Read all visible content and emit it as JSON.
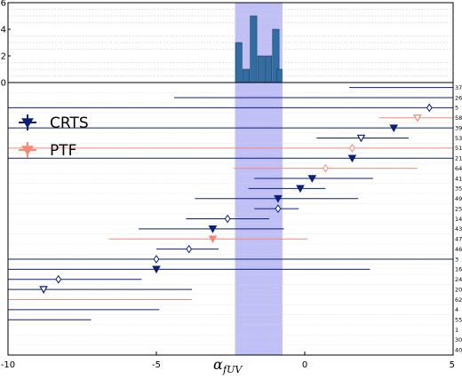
{
  "chart_data": {
    "type": "scatter",
    "xlabel": {
      "base": "α",
      "sub": "fUV"
    },
    "xlim": [
      -10,
      5
    ],
    "xticks": [
      "-10",
      "-5",
      "0",
      "5"
    ],
    "shaded_band": {
      "x": [
        -2.35,
        -0.75
      ],
      "color": "#b9b9f5"
    },
    "histogram": {
      "type": "bar",
      "ylim": [
        0,
        6
      ],
      "yticks": [
        "0",
        "2",
        "4",
        "6"
      ],
      "color": "#2f6da2",
      "bin_edges": [
        -2.35,
        -2.1,
        -1.85,
        -1.6,
        -1.35,
        -1.1,
        -0.85
      ],
      "counts": [
        3,
        1,
        5,
        2,
        2,
        4
      ],
      "extra_bins": [
        {
          "left": -0.95,
          "right": -0.75,
          "count": 1
        }
      ]
    },
    "legend": [
      {
        "name": "CRTS",
        "color": "#0a1f7a",
        "marker": "filled-triangle-down"
      },
      {
        "name": "PTF",
        "color": "#f28a78",
        "marker": "filled-triangle-down"
      }
    ],
    "rows": [
      {
        "label": "37",
        "survey": "CRTS",
        "lo": 1.5,
        "hi": 5,
        "val": null,
        "marker": "none"
      },
      {
        "label": "26",
        "survey": "CRTS",
        "lo": -4.4,
        "hi": 5,
        "val": null,
        "marker": "none"
      },
      {
        "label": "5",
        "survey": "CRTS",
        "lo": -10,
        "hi": 5,
        "val": 4.2,
        "marker": "open-diamond"
      },
      {
        "label": "58",
        "survey": "PTF",
        "lo": 2.5,
        "hi": 5,
        "val": 3.8,
        "marker": "open-triangle"
      },
      {
        "label": "39",
        "survey": "CRTS",
        "lo": -10,
        "hi": 5,
        "val": 3.0,
        "marker": "filled-triangle"
      },
      {
        "label": "53",
        "survey": "CRTS",
        "lo": 0.4,
        "hi": 3.5,
        "val": 1.9,
        "marker": "open-triangle"
      },
      {
        "label": "51",
        "survey": "PTF",
        "lo": -10,
        "hi": 5,
        "val": 1.6,
        "marker": "open-diamond"
      },
      {
        "label": "21",
        "survey": "CRTS",
        "lo": -10,
        "hi": 5,
        "val": 1.6,
        "marker": "filled-triangle"
      },
      {
        "label": "64",
        "survey": "PTF",
        "lo": -2.4,
        "hi": 3.8,
        "val": 0.7,
        "marker": "open-diamond"
      },
      {
        "label": "41",
        "survey": "CRTS",
        "lo": -1.7,
        "hi": 2.3,
        "val": 0.25,
        "marker": "filled-triangle"
      },
      {
        "label": "35",
        "survey": "CRTS",
        "lo": -1.9,
        "hi": 0.7,
        "val": -0.15,
        "marker": "filled-triangle"
      },
      {
        "label": "49",
        "survey": "CRTS",
        "lo": -3.7,
        "hi": 1.8,
        "val": -0.9,
        "marker": "filled-triangle"
      },
      {
        "label": "25",
        "survey": "CRTS",
        "lo": -1.7,
        "hi": -0.2,
        "val": -0.9,
        "marker": "open-diamond"
      },
      {
        "label": "14",
        "survey": "CRTS",
        "lo": -4.0,
        "hi": -1.2,
        "val": -2.6,
        "marker": "open-diamond"
      },
      {
        "label": "43",
        "survey": "CRTS",
        "lo": -5.6,
        "hi": -0.7,
        "val": -3.1,
        "marker": "filled-triangle"
      },
      {
        "label": "47",
        "survey": "PTF",
        "lo": -6.6,
        "hi": 0.1,
        "val": -3.1,
        "marker": "filled-triangle"
      },
      {
        "label": "46",
        "survey": "CRTS",
        "lo": -5.0,
        "hi": -2.9,
        "val": -3.9,
        "marker": "open-diamond"
      },
      {
        "label": "3",
        "survey": "CRTS",
        "lo": -10,
        "hi": 5,
        "val": -5.0,
        "marker": "open-diamond"
      },
      {
        "label": "16",
        "survey": "CRTS",
        "lo": -10,
        "hi": 2.2,
        "val": -5.0,
        "marker": "filled-triangle"
      },
      {
        "label": "24",
        "survey": "CRTS",
        "lo": -10,
        "hi": -5.5,
        "val": -8.3,
        "marker": "open-diamond"
      },
      {
        "label": "20",
        "survey": "CRTS",
        "lo": -10,
        "hi": -3.8,
        "val": -8.8,
        "marker": "open-triangle"
      },
      {
        "label": "62",
        "survey": "PTF",
        "lo": -10,
        "hi": -3.8,
        "val": null,
        "marker": "none"
      },
      {
        "label": "4",
        "survey": "CRTS",
        "lo": -10,
        "hi": -4.9,
        "val": null,
        "marker": "none"
      },
      {
        "label": "55",
        "survey": "CRTS",
        "lo": -10,
        "hi": -7.2,
        "val": null,
        "marker": "none"
      },
      {
        "label": "1",
        "survey": "CRTS",
        "lo": null,
        "hi": null,
        "val": null,
        "marker": "none"
      },
      {
        "label": "30",
        "survey": "CRTS",
        "lo": null,
        "hi": null,
        "val": null,
        "marker": "none"
      },
      {
        "label": "40",
        "survey": "CRTS",
        "lo": null,
        "hi": null,
        "val": null,
        "marker": "none"
      }
    ]
  }
}
